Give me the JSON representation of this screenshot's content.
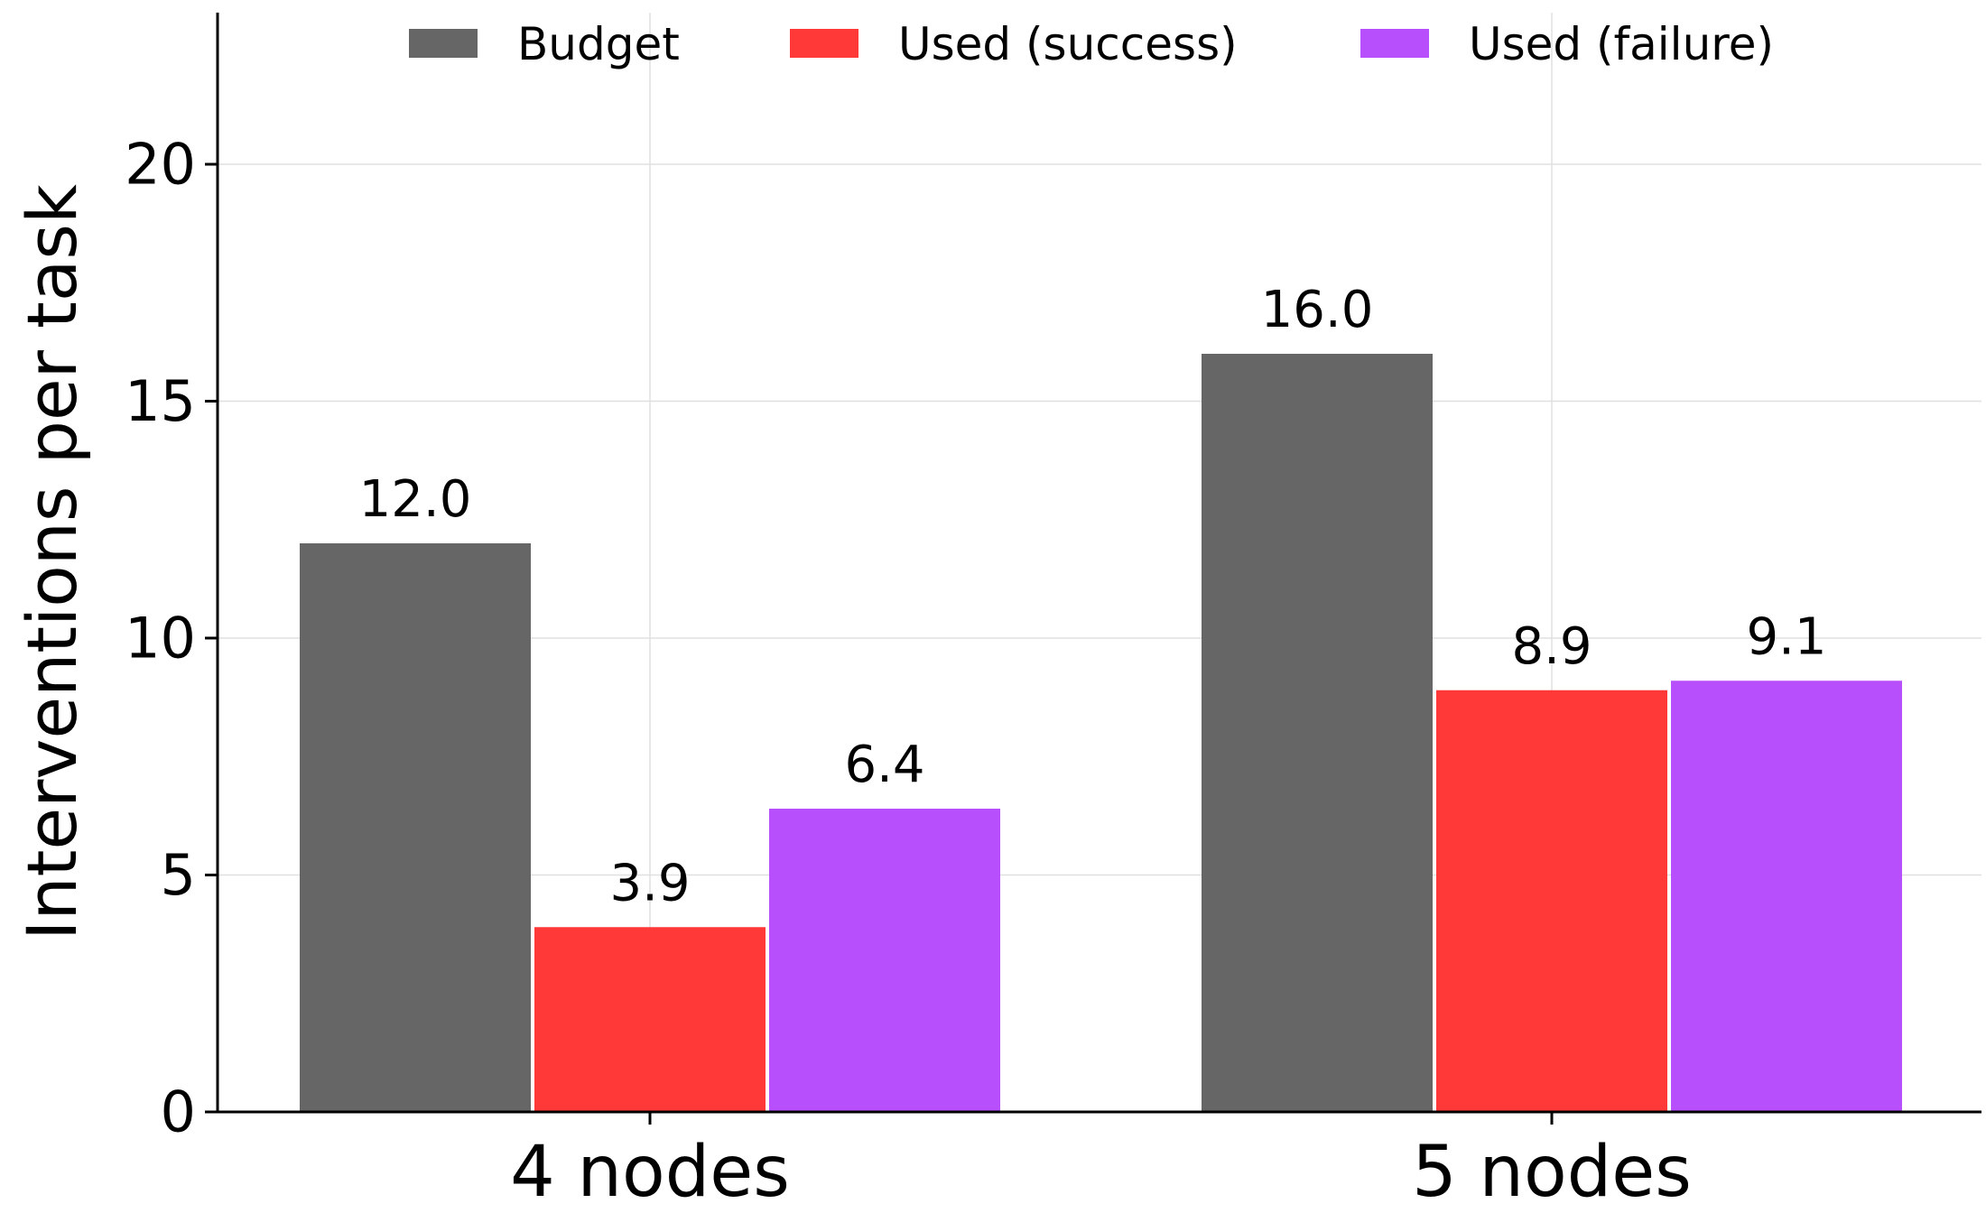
{
  "chart_data": {
    "type": "bar",
    "categories": [
      "4 nodes",
      "5 nodes"
    ],
    "series": [
      {
        "name": "Budget",
        "values": [
          12.0,
          16.0
        ],
        "labels": [
          "12.0",
          "16.0"
        ],
        "color": "#666666"
      },
      {
        "name": "Used (success)",
        "values": [
          3.9,
          8.9
        ],
        "labels": [
          "3.9",
          "8.9"
        ],
        "color": "#ff3838"
      },
      {
        "name": "Used (failure)",
        "values": [
          6.4,
          9.1
        ],
        "labels": [
          "6.4",
          "9.1"
        ],
        "color": "#b84ffc"
      }
    ],
    "title": "",
    "xlabel": "",
    "ylabel": "Interventions per task",
    "ylim": [
      0,
      23.2
    ],
    "yticks": [
      0,
      5,
      10,
      15,
      20
    ],
    "ytick_labels": [
      "0",
      "5",
      "10",
      "15",
      "20"
    ],
    "grid": true,
    "legend_position": "top-center"
  }
}
